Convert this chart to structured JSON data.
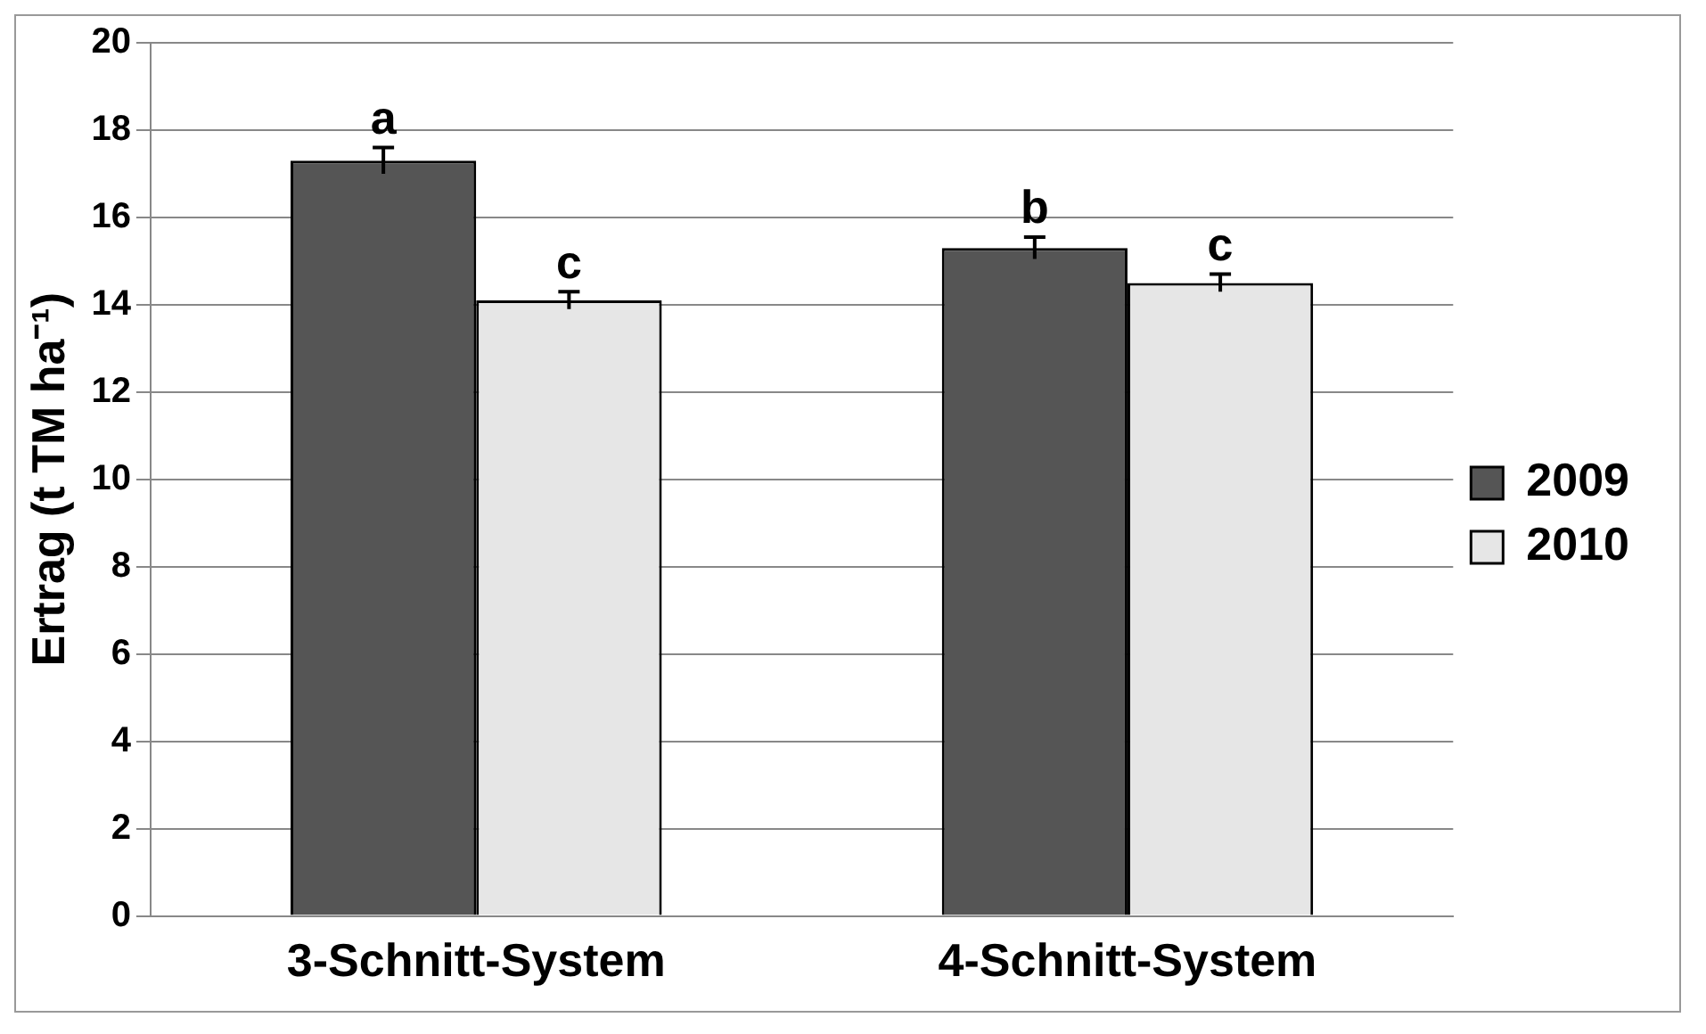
{
  "chart_data": {
    "type": "bar",
    "ylabel": "Ertrag (t TM ha⁻¹)",
    "categories": [
      "3-Schnitt-System",
      "4-Schnitt-System"
    ],
    "series": [
      {
        "name": "2009",
        "color": "#555555",
        "values": [
          17.3,
          15.3
        ],
        "errors": [
          0.3,
          0.25
        ],
        "value_labels": [
          "a",
          "b"
        ]
      },
      {
        "name": "2010",
        "color": "#e6e6e6",
        "values": [
          14.1,
          14.5
        ],
        "errors": [
          0.2,
          0.2
        ],
        "value_labels": [
          "c",
          "c"
        ]
      }
    ],
    "ylim": [
      0,
      20
    ],
    "yticks": [
      0,
      2,
      4,
      6,
      8,
      10,
      12,
      14,
      16,
      18,
      20
    ],
    "grid": "y",
    "legend": "right"
  }
}
